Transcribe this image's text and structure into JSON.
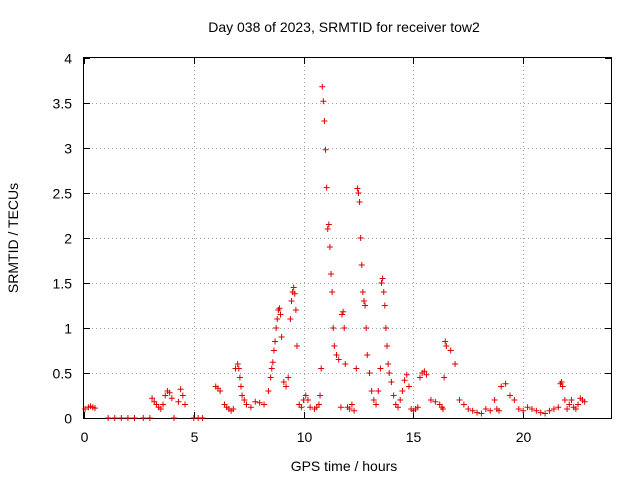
{
  "chart_data": {
    "type": "scatter",
    "title": "Day 038 of 2023, SRMTID for receiver tow2",
    "xlabel": "GPS time / hours",
    "ylabel": "SRMTID / TECUs",
    "xlim": [
      0,
      24
    ],
    "ylim": [
      0,
      4
    ],
    "xticks": [
      0,
      5,
      10,
      15,
      20
    ],
    "xtick_labels": [
      "0",
      "5",
      "10",
      "15",
      "20"
    ],
    "yticks": [
      0,
      0.5,
      1,
      1.5,
      2,
      2.5,
      3,
      3.5,
      4
    ],
    "ytick_labels": [
      "0",
      "0.5",
      "1",
      "1.5",
      "2",
      "2.5",
      "3",
      "3.5",
      "4"
    ],
    "grid": true,
    "marker": "+",
    "color": "#e00000",
    "series": [
      {
        "name": "SRMTID",
        "x": [
          0.05,
          0.2,
          0.3,
          0.4,
          0.5,
          1.1,
          1.4,
          1.7,
          2.0,
          2.3,
          2.7,
          3.0,
          3.1,
          3.2,
          3.3,
          3.4,
          3.5,
          3.6,
          3.7,
          3.8,
          3.9,
          4.0,
          4.1,
          4.3,
          4.4,
          4.5,
          4.6,
          5.0,
          5.2,
          5.4,
          6.0,
          6.1,
          6.2,
          6.4,
          6.5,
          6.6,
          6.7,
          6.8,
          6.9,
          7.0,
          7.05,
          7.1,
          7.15,
          7.2,
          7.3,
          7.4,
          7.6,
          7.8,
          8.0,
          8.2,
          8.4,
          8.5,
          8.55,
          8.6,
          8.65,
          8.7,
          8.75,
          8.8,
          8.85,
          8.9,
          8.95,
          9.0,
          9.1,
          9.2,
          9.3,
          9.4,
          9.45,
          9.5,
          9.55,
          9.6,
          9.65,
          9.7,
          9.8,
          9.9,
          10.0,
          10.1,
          10.2,
          10.3,
          10.5,
          10.6,
          10.7,
          10.75,
          10.8,
          10.85,
          10.9,
          10.95,
          11.0,
          11.05,
          11.1,
          11.15,
          11.2,
          11.25,
          11.3,
          11.35,
          11.4,
          11.5,
          11.6,
          11.7,
          11.75,
          11.8,
          11.85,
          11.9,
          12.0,
          12.1,
          12.2,
          12.3,
          12.4,
          12.45,
          12.5,
          12.55,
          12.6,
          12.65,
          12.7,
          12.75,
          12.8,
          12.85,
          12.9,
          13.0,
          13.1,
          13.2,
          13.3,
          13.4,
          13.5,
          13.55,
          13.6,
          13.65,
          13.7,
          13.75,
          13.8,
          13.85,
          13.9,
          14.0,
          14.1,
          14.2,
          14.3,
          14.4,
          14.5,
          14.6,
          14.7,
          14.8,
          14.9,
          15.0,
          15.1,
          15.2,
          15.3,
          15.4,
          15.5,
          15.6,
          15.8,
          16.0,
          16.2,
          16.3,
          16.35,
          16.4,
          16.45,
          16.5,
          16.7,
          16.9,
          17.1,
          17.3,
          17.5,
          17.7,
          17.9,
          18.1,
          18.3,
          18.5,
          18.7,
          18.8,
          18.9,
          19.0,
          19.2,
          19.4,
          19.6,
          19.8,
          20.0,
          20.2,
          20.4,
          20.6,
          20.8,
          21.0,
          21.2,
          21.4,
          21.6,
          21.7,
          21.75,
          21.8,
          21.9,
          22.0,
          22.1,
          22.2,
          22.3,
          22.4,
          22.5,
          22.6,
          22.7,
          22.8
        ],
        "y": [
          0.1,
          0.12,
          0.13,
          0.12,
          0.11,
          0.0,
          0.0,
          0.0,
          0.0,
          0.0,
          0.0,
          0.0,
          0.22,
          0.18,
          0.15,
          0.12,
          0.1,
          0.15,
          0.25,
          0.3,
          0.28,
          0.22,
          0.0,
          0.18,
          0.32,
          0.25,
          0.15,
          0.0,
          0.0,
          0.0,
          0.35,
          0.33,
          0.3,
          0.15,
          0.12,
          0.1,
          0.08,
          0.1,
          0.55,
          0.6,
          0.55,
          0.45,
          0.35,
          0.25,
          0.2,
          0.15,
          0.12,
          0.18,
          0.17,
          0.15,
          0.3,
          0.45,
          0.55,
          0.62,
          0.75,
          0.85,
          1.0,
          1.1,
          1.2,
          1.22,
          1.15,
          0.9,
          0.4,
          0.35,
          0.45,
          1.1,
          1.3,
          1.4,
          1.45,
          1.38,
          1.2,
          0.8,
          0.15,
          0.12,
          0.2,
          0.25,
          0.2,
          0.12,
          0.1,
          0.12,
          0.15,
          0.25,
          0.55,
          3.68,
          3.52,
          3.3,
          2.98,
          2.56,
          2.1,
          2.15,
          1.9,
          1.6,
          1.4,
          1.0,
          0.8,
          0.7,
          0.65,
          0.12,
          1.15,
          1.18,
          1.0,
          0.6,
          0.12,
          0.1,
          0.15,
          0.08,
          0.55,
          2.55,
          2.5,
          2.4,
          2.0,
          1.7,
          1.4,
          1.3,
          1.25,
          1.0,
          0.7,
          0.5,
          0.3,
          0.2,
          0.15,
          0.3,
          0.55,
          1.5,
          1.55,
          1.4,
          1.25,
          1.0,
          0.8,
          0.6,
          0.5,
          0.4,
          0.25,
          0.15,
          0.12,
          0.2,
          0.3,
          0.42,
          0.48,
          0.35,
          0.1,
          0.08,
          0.1,
          0.12,
          0.45,
          0.5,
          0.52,
          0.48,
          0.2,
          0.18,
          0.15,
          0.12,
          0.1,
          0.45,
          0.85,
          0.8,
          0.75,
          0.6,
          0.2,
          0.15,
          0.1,
          0.08,
          0.06,
          0.05,
          0.1,
          0.08,
          0.2,
          0.1,
          0.08,
          0.35,
          0.38,
          0.25,
          0.2,
          0.1,
          0.08,
          0.12,
          0.1,
          0.08,
          0.06,
          0.05,
          0.08,
          0.1,
          0.12,
          0.38,
          0.4,
          0.35,
          0.2,
          0.1,
          0.15,
          0.2,
          0.12,
          0.1,
          0.15,
          0.22,
          0.2,
          0.18
        ]
      }
    ]
  }
}
